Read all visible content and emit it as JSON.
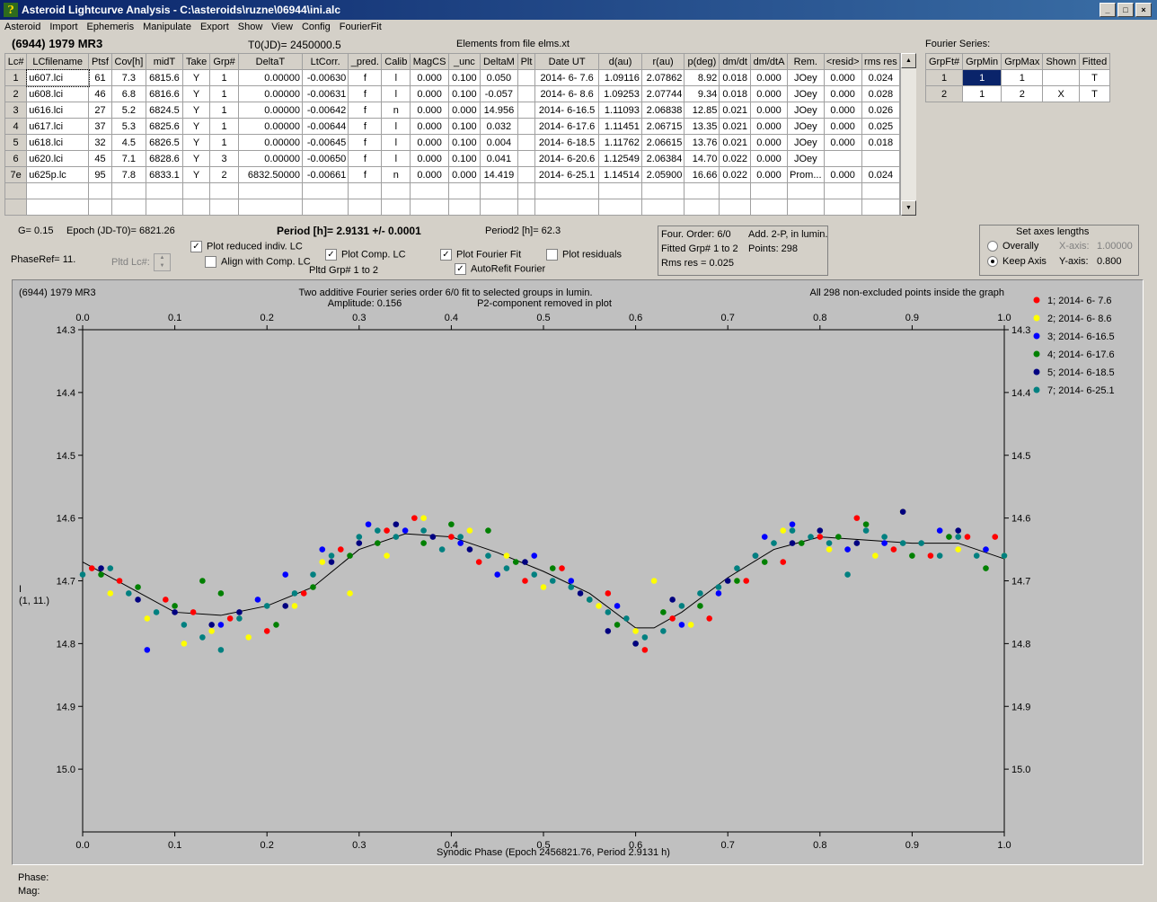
{
  "window": {
    "title": "Asteroid Lightcurve Analysis - C:\\asteroids\\ruzne\\06944\\ini.alc",
    "buttons": [
      "_",
      "□",
      "×"
    ]
  },
  "menu": [
    "Asteroid",
    "Import",
    "Ephemeris",
    "Manipulate",
    "Export",
    "Show",
    "View",
    "Config",
    "FourierFit"
  ],
  "header": {
    "asteroid": "(6944) 1979 MR3",
    "t0": "T0(JD)= 2450000.5",
    "elements": "Elements from file elms.xt"
  },
  "lc_table": {
    "columns": [
      "Lc#",
      "LCfilename",
      "Ptsf",
      "Cov[h]",
      "midT",
      "Take",
      "Grp#",
      "DeltaT",
      "LtCorr.",
      "_pred.",
      "Calib",
      "MagCS",
      "_unc",
      "DeltaM",
      "Plt",
      "Date UT",
      "d(au)",
      "r(au)",
      "p(deg)",
      "dm/dt",
      "dm/dtA",
      "Rem.",
      "<resid>",
      "rms res"
    ],
    "rows": [
      [
        "1",
        "u607.lci",
        "61",
        "7.3",
        "6815.6",
        "Y",
        "1",
        "0.00000",
        "-0.00630",
        "f",
        "l",
        "0.000",
        "0.100",
        "0.050",
        "",
        "2014- 6- 7.6",
        "1.09116",
        "2.07862",
        "8.92",
        "0.018",
        "0.000",
        "JOey",
        "0.000",
        "0.024"
      ],
      [
        "2",
        "u608.lci",
        "46",
        "6.8",
        "6816.6",
        "Y",
        "1",
        "0.00000",
        "-0.00631",
        "f",
        "l",
        "0.000",
        "0.100",
        "-0.057",
        "",
        "2014- 6- 8.6",
        "1.09253",
        "2.07744",
        "9.34",
        "0.018",
        "0.000",
        "JOey",
        "0.000",
        "0.028"
      ],
      [
        "3",
        "u616.lci",
        "27",
        "5.2",
        "6824.5",
        "Y",
        "1",
        "0.00000",
        "-0.00642",
        "f",
        "n",
        "0.000",
        "0.000",
        "14.956",
        "",
        "2014- 6-16.5",
        "1.11093",
        "2.06838",
        "12.85",
        "0.021",
        "0.000",
        "JOey",
        "0.000",
        "0.026"
      ],
      [
        "4",
        "u617.lci",
        "37",
        "5.3",
        "6825.6",
        "Y",
        "1",
        "0.00000",
        "-0.00644",
        "f",
        "l",
        "0.000",
        "0.100",
        "0.032",
        "",
        "2014- 6-17.6",
        "1.11451",
        "2.06715",
        "13.35",
        "0.021",
        "0.000",
        "JOey",
        "0.000",
        "0.025"
      ],
      [
        "5",
        "u618.lci",
        "32",
        "4.5",
        "6826.5",
        "Y",
        "1",
        "0.00000",
        "-0.00645",
        "f",
        "l",
        "0.000",
        "0.100",
        "0.004",
        "",
        "2014- 6-18.5",
        "1.11762",
        "2.06615",
        "13.76",
        "0.021",
        "0.000",
        "JOey",
        "0.000",
        "0.018"
      ],
      [
        "6",
        "u620.lci",
        "45",
        "7.1",
        "6828.6",
        "Y",
        "3",
        "0.00000",
        "-0.00650",
        "f",
        "l",
        "0.000",
        "0.100",
        "0.041",
        "",
        "2014- 6-20.6",
        "1.12549",
        "2.06384",
        "14.70",
        "0.022",
        "0.000",
        "JOey",
        "",
        ""
      ],
      [
        "7e",
        "u625p.lc",
        "95",
        "7.8",
        "6833.1",
        "Y",
        "2",
        "6832.50000",
        "-0.00661",
        "f",
        "n",
        "0.000",
        "0.000",
        "14.419",
        "",
        "2014- 6-25.1",
        "1.14514",
        "2.05900",
        "16.66",
        "0.022",
        "0.000",
        "Prom...",
        "0.000",
        "0.024"
      ]
    ]
  },
  "fourier_table": {
    "title": "Fourier Series:",
    "columns": [
      "GrpFt#",
      "GrpMin",
      "GrpMax",
      "Shown",
      "Fitted"
    ],
    "rows": [
      [
        "1",
        "1",
        "1",
        "",
        "T"
      ],
      [
        "2",
        "1",
        "2",
        "X",
        "T"
      ]
    ]
  },
  "controls": {
    "g": "G= 0.15",
    "epoch": "Epoch (JD-T0)= 6821.26",
    "period": "Period [h]= 2.9131 +/- 0.0001",
    "period2": "Period2 [h]= 62.3",
    "phaseref": "PhaseRef= 11.",
    "pltd_lc": "Pltd Lc#:",
    "plot_reduced": "Plot reduced indiv. LC",
    "align_comp": "Align with Comp. LC",
    "plot_comp": "Plot Comp. LC",
    "pltd_grp": "Pltd Grp#  1  to  2",
    "plot_fourier": "Plot Fourier Fit",
    "autorefit": "AutoRefit Fourier",
    "plot_residuals": "Plot residuals",
    "check_states": {
      "plot_reduced": true,
      "align_comp": false,
      "plot_comp": true,
      "plot_fourier": true,
      "autorefit": true,
      "plot_residuals": false
    }
  },
  "info_box": {
    "four_order": "Four. Order:  6/0",
    "add2p": "Add. 2-P, in lumin.",
    "fitted_grp": "Fitted Grp# 1 to 2",
    "points": "Points: 298",
    "rms": "Rms res     = 0.025"
  },
  "axes_box": {
    "title": "Set axes lengths",
    "overally": "Overally",
    "keep_axis": "Keep Axis",
    "x_axis_label": "X-axis:",
    "x_axis_value": "1.00000",
    "y_axis_label": "Y-axis:",
    "y_axis_value": "0.800",
    "selected": "keep_axis"
  },
  "footer": {
    "phase": "Phase:",
    "mag": "Mag:"
  },
  "chart_data": {
    "type": "scatter",
    "title_left": "(6944) 1979 MR3",
    "title_center": [
      "Two additive Fourier series order 6/0 fit to selected groups in lumin.",
      "Amplitude: 0.156",
      "P2-component removed in plot"
    ],
    "title_right": "All 298 non-excluded points inside the graph",
    "xlabel": "Synodic Phase (Epoch 2456821.76, Period 2.9131 h)",
    "ylabel": [
      "I",
      "(1, 11.)"
    ],
    "xlim": [
      0.0,
      1.0
    ],
    "ylim": [
      14.3,
      15.1
    ],
    "y_inverted": true,
    "x_ticks": [
      "0.0",
      "0.1",
      "0.2",
      "0.3",
      "0.4",
      "0.5",
      "0.6",
      "0.7",
      "0.8",
      "0.9",
      "1.0"
    ],
    "y_ticks": [
      "14.3",
      "14.4",
      "14.5",
      "14.6",
      "14.7",
      "14.8",
      "14.9",
      "15.0"
    ],
    "legend_position": "right",
    "series": [
      {
        "name": "1; 2014- 6- 7.6",
        "color": "#ff0000",
        "points": [
          [
            0.01,
            14.68
          ],
          [
            0.04,
            14.7
          ],
          [
            0.09,
            14.73
          ],
          [
            0.12,
            14.75
          ],
          [
            0.16,
            14.76
          ],
          [
            0.2,
            14.78
          ],
          [
            0.24,
            14.72
          ],
          [
            0.28,
            14.65
          ],
          [
            0.33,
            14.62
          ],
          [
            0.36,
            14.6
          ],
          [
            0.4,
            14.63
          ],
          [
            0.43,
            14.67
          ],
          [
            0.48,
            14.7
          ],
          [
            0.52,
            14.68
          ],
          [
            0.57,
            14.72
          ],
          [
            0.61,
            14.81
          ],
          [
            0.64,
            14.76
          ],
          [
            0.68,
            14.76
          ],
          [
            0.72,
            14.7
          ],
          [
            0.76,
            14.67
          ],
          [
            0.8,
            14.63
          ],
          [
            0.84,
            14.6
          ],
          [
            0.88,
            14.65
          ],
          [
            0.92,
            14.66
          ],
          [
            0.96,
            14.63
          ],
          [
            0.99,
            14.63
          ]
        ]
      },
      {
        "name": "2; 2014- 6- 8.6",
        "color": "#ffff00",
        "points": [
          [
            0.03,
            14.72
          ],
          [
            0.07,
            14.76
          ],
          [
            0.11,
            14.8
          ],
          [
            0.14,
            14.78
          ],
          [
            0.18,
            14.79
          ],
          [
            0.23,
            14.74
          ],
          [
            0.26,
            14.67
          ],
          [
            0.29,
            14.72
          ],
          [
            0.33,
            14.66
          ],
          [
            0.37,
            14.6
          ],
          [
            0.42,
            14.62
          ],
          [
            0.46,
            14.66
          ],
          [
            0.5,
            14.71
          ],
          [
            0.56,
            14.74
          ],
          [
            0.6,
            14.78
          ],
          [
            0.62,
            14.7
          ],
          [
            0.66,
            14.77
          ],
          [
            0.71,
            14.7
          ],
          [
            0.76,
            14.62
          ],
          [
            0.81,
            14.65
          ],
          [
            0.86,
            14.66
          ],
          [
            0.89,
            14.59
          ],
          [
            0.95,
            14.65
          ],
          [
            1.0,
            14.66
          ]
        ]
      },
      {
        "name": "3; 2014- 6-16.5",
        "color": "#0000ff",
        "points": [
          [
            0.07,
            14.81
          ],
          [
            0.15,
            14.77
          ],
          [
            0.19,
            14.73
          ],
          [
            0.22,
            14.69
          ],
          [
            0.26,
            14.65
          ],
          [
            0.31,
            14.61
          ],
          [
            0.35,
            14.62
          ],
          [
            0.41,
            14.64
          ],
          [
            0.45,
            14.69
          ],
          [
            0.49,
            14.66
          ],
          [
            0.53,
            14.7
          ],
          [
            0.58,
            14.74
          ],
          [
            0.65,
            14.77
          ],
          [
            0.69,
            14.72
          ],
          [
            0.74,
            14.63
          ],
          [
            0.77,
            14.61
          ],
          [
            0.83,
            14.65
          ],
          [
            0.87,
            14.64
          ],
          [
            0.93,
            14.62
          ],
          [
            0.98,
            14.65
          ]
        ]
      },
      {
        "name": "4; 2014- 6-17.6",
        "color": "#008000",
        "points": [
          [
            0.02,
            14.69
          ],
          [
            0.06,
            14.71
          ],
          [
            0.1,
            14.74
          ],
          [
            0.13,
            14.7
          ],
          [
            0.15,
            14.72
          ],
          [
            0.21,
            14.77
          ],
          [
            0.25,
            14.71
          ],
          [
            0.29,
            14.66
          ],
          [
            0.32,
            14.64
          ],
          [
            0.37,
            14.64
          ],
          [
            0.4,
            14.61
          ],
          [
            0.44,
            14.62
          ],
          [
            0.47,
            14.67
          ],
          [
            0.51,
            14.68
          ],
          [
            0.55,
            14.73
          ],
          [
            0.58,
            14.77
          ],
          [
            0.6,
            14.8
          ],
          [
            0.63,
            14.75
          ],
          [
            0.67,
            14.74
          ],
          [
            0.71,
            14.7
          ],
          [
            0.74,
            14.67
          ],
          [
            0.78,
            14.64
          ],
          [
            0.82,
            14.63
          ],
          [
            0.85,
            14.61
          ],
          [
            0.9,
            14.66
          ],
          [
            0.94,
            14.63
          ],
          [
            0.98,
            14.68
          ]
        ]
      },
      {
        "name": "5; 2014- 6-18.5",
        "color": "#000080",
        "points": [
          [
            0.02,
            14.68
          ],
          [
            0.06,
            14.73
          ],
          [
            0.1,
            14.75
          ],
          [
            0.14,
            14.77
          ],
          [
            0.17,
            14.75
          ],
          [
            0.22,
            14.74
          ],
          [
            0.27,
            14.67
          ],
          [
            0.3,
            14.64
          ],
          [
            0.34,
            14.61
          ],
          [
            0.38,
            14.63
          ],
          [
            0.42,
            14.65
          ],
          [
            0.48,
            14.67
          ],
          [
            0.54,
            14.72
          ],
          [
            0.57,
            14.78
          ],
          [
            0.6,
            14.8
          ],
          [
            0.64,
            14.73
          ],
          [
            0.7,
            14.7
          ],
          [
            0.73,
            14.66
          ],
          [
            0.77,
            14.64
          ],
          [
            0.8,
            14.62
          ],
          [
            0.84,
            14.64
          ],
          [
            0.89,
            14.59
          ],
          [
            0.95,
            14.62
          ]
        ]
      },
      {
        "name": "7; 2014- 6-25.1",
        "color": "#008080",
        "points": [
          [
            0.0,
            14.69
          ],
          [
            0.03,
            14.68
          ],
          [
            0.05,
            14.72
          ],
          [
            0.08,
            14.75
          ],
          [
            0.11,
            14.77
          ],
          [
            0.13,
            14.79
          ],
          [
            0.15,
            14.81
          ],
          [
            0.17,
            14.76
          ],
          [
            0.2,
            14.74
          ],
          [
            0.23,
            14.72
          ],
          [
            0.25,
            14.69
          ],
          [
            0.27,
            14.66
          ],
          [
            0.3,
            14.63
          ],
          [
            0.32,
            14.62
          ],
          [
            0.34,
            14.63
          ],
          [
            0.37,
            14.62
          ],
          [
            0.39,
            14.65
          ],
          [
            0.41,
            14.63
          ],
          [
            0.44,
            14.66
          ],
          [
            0.46,
            14.68
          ],
          [
            0.49,
            14.69
          ],
          [
            0.51,
            14.7
          ],
          [
            0.53,
            14.71
          ],
          [
            0.55,
            14.73
          ],
          [
            0.57,
            14.75
          ],
          [
            0.59,
            14.76
          ],
          [
            0.61,
            14.79
          ],
          [
            0.63,
            14.78
          ],
          [
            0.65,
            14.74
          ],
          [
            0.67,
            14.72
          ],
          [
            0.69,
            14.71
          ],
          [
            0.71,
            14.68
          ],
          [
            0.73,
            14.66
          ],
          [
            0.75,
            14.64
          ],
          [
            0.77,
            14.62
          ],
          [
            0.79,
            14.63
          ],
          [
            0.81,
            14.64
          ],
          [
            0.83,
            14.69
          ],
          [
            0.85,
            14.62
          ],
          [
            0.87,
            14.63
          ],
          [
            0.89,
            14.64
          ],
          [
            0.91,
            14.64
          ],
          [
            0.93,
            14.66
          ],
          [
            0.95,
            14.63
          ],
          [
            0.97,
            14.66
          ],
          [
            1.0,
            14.66
          ]
        ]
      }
    ],
    "fit_curve": {
      "color": "#000000",
      "points": [
        [
          0.0,
          14.67
        ],
        [
          0.05,
          14.71
        ],
        [
          0.1,
          14.75
        ],
        [
          0.15,
          14.755
        ],
        [
          0.2,
          14.74
        ],
        [
          0.25,
          14.71
        ],
        [
          0.3,
          14.65
        ],
        [
          0.35,
          14.625
        ],
        [
          0.4,
          14.63
        ],
        [
          0.45,
          14.655
        ],
        [
          0.5,
          14.685
        ],
        [
          0.55,
          14.72
        ],
        [
          0.6,
          14.775
        ],
        [
          0.62,
          14.775
        ],
        [
          0.65,
          14.75
        ],
        [
          0.7,
          14.695
        ],
        [
          0.75,
          14.65
        ],
        [
          0.8,
          14.63
        ],
        [
          0.85,
          14.635
        ],
        [
          0.9,
          14.64
        ],
        [
          0.95,
          14.64
        ],
        [
          1.0,
          14.665
        ]
      ]
    }
  }
}
